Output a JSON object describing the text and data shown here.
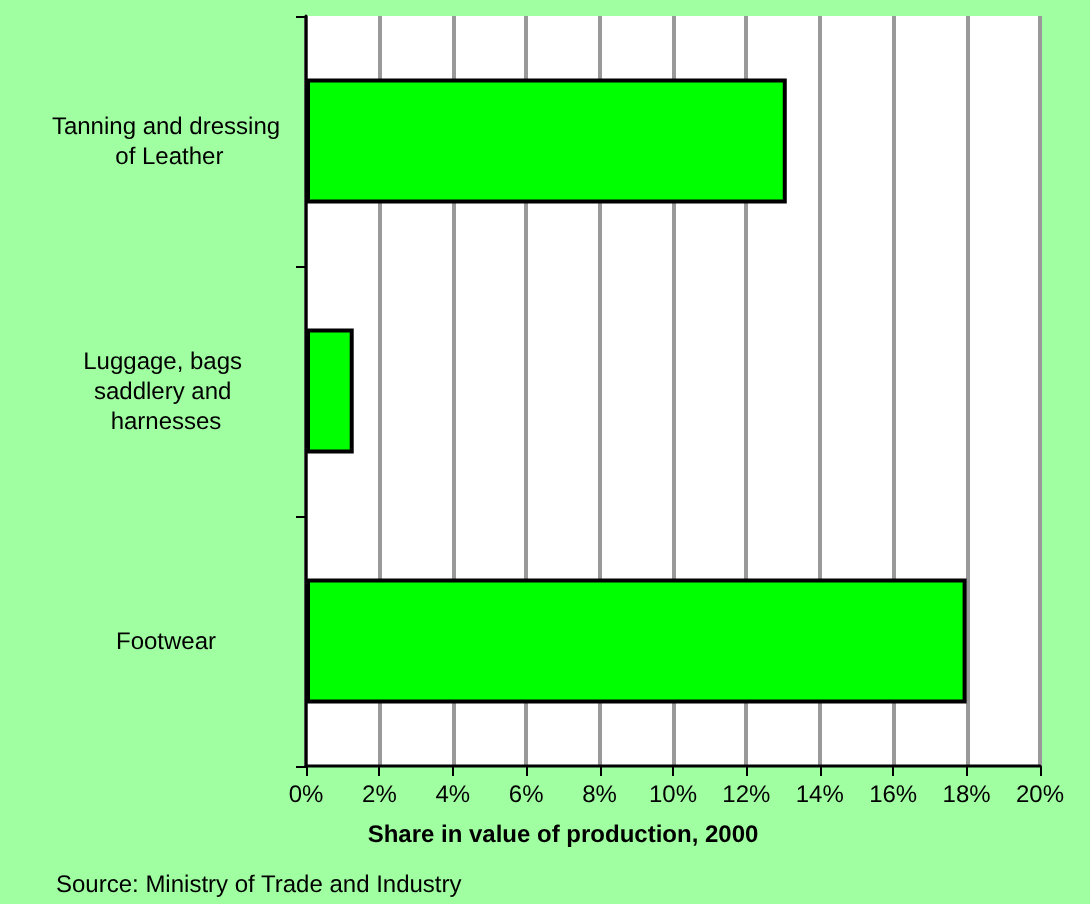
{
  "chart_data": {
    "type": "bar",
    "orientation": "horizontal",
    "categories": [
      "Tanning and dressing of Leather",
      "Luggage, bags saddlery and harnesses",
      "Footwear"
    ],
    "values": [
      13.1,
      1.3,
      18.0
    ],
    "color": "#00ff00",
    "xlabel": "Share in value of production, 2000",
    "xlim": [
      0,
      20
    ],
    "xticks": [
      {
        "value": 0,
        "label": "0%"
      },
      {
        "value": 2,
        "label": "2%"
      },
      {
        "value": 4,
        "label": "4%"
      },
      {
        "value": 6,
        "label": "6%"
      },
      {
        "value": 8,
        "label": "8%"
      },
      {
        "value": 10,
        "label": "10%"
      },
      {
        "value": 12,
        "label": "12%"
      },
      {
        "value": 14,
        "label": "14%"
      },
      {
        "value": 16,
        "label": "16%"
      },
      {
        "value": 18,
        "label": "18%"
      },
      {
        "value": 20,
        "label": "20%"
      }
    ],
    "grid": "x",
    "annotations": [
      "Source: Ministry of Trade and Industry"
    ]
  }
}
